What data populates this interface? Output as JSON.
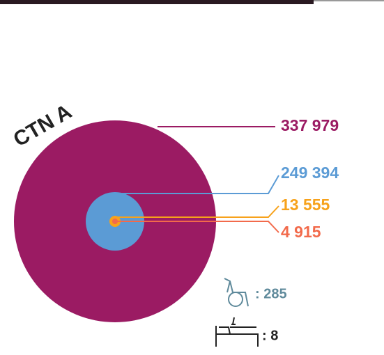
{
  "chart_data": {
    "type": "nested-circles",
    "title": "CTN A",
    "values": [
      337979,
      249394,
      13555,
      4915
    ],
    "value_labels": [
      "337 979",
      "249 394",
      "13 555",
      "4 915"
    ],
    "colors": [
      "#9b1b63",
      "#5b9bd5",
      "#f7a21b",
      "#f26a4b"
    ]
  },
  "icon_counts": {
    "values": [
      285,
      8
    ],
    "value_labels": [
      ": 285",
      ": 8"
    ],
    "colors": [
      "#5f8a9b",
      "#222222"
    ]
  }
}
